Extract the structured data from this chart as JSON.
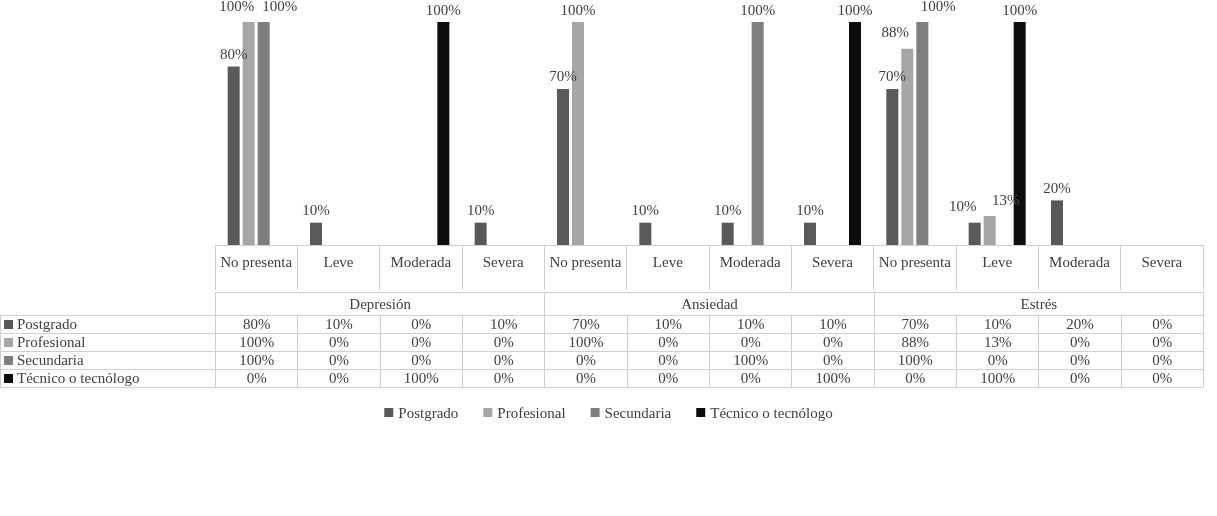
{
  "chart_data": {
    "type": "bar",
    "categories": [
      "No presenta",
      "Leve",
      "Moderada",
      "Severa",
      "No presenta",
      "Leve",
      "Moderada",
      "Severa",
      "No presenta",
      "Leve",
      "Moderada",
      "Severa"
    ],
    "annotations": [
      "Depresión",
      "Ansiedad",
      "Estrés"
    ],
    "series": [
      {
        "name": "Postgrado",
        "color": "#595959",
        "values": [
          80,
          10,
          0,
          10,
          70,
          10,
          10,
          10,
          70,
          10,
          20,
          0
        ],
        "value_labels": [
          "80%",
          "10%",
          "0%",
          "10%",
          "70%",
          "10%",
          "10%",
          "10%",
          "70%",
          "10%",
          "20%",
          "0%"
        ]
      },
      {
        "name": "Profesional",
        "color": "#a6a6a6",
        "values": [
          100,
          0,
          0,
          0,
          100,
          0,
          0,
          0,
          88,
          13,
          0,
          0
        ],
        "value_labels": [
          "100%",
          "0%",
          "0%",
          "0%",
          "100%",
          "0%",
          "0%",
          "0%",
          "88%",
          "13%",
          "0%",
          "0%"
        ]
      },
      {
        "name": "Secundaria",
        "color": "#7f7f7f",
        "values": [
          100,
          0,
          0,
          0,
          0,
          0,
          100,
          0,
          100,
          0,
          0,
          0
        ],
        "value_labels": [
          "100%",
          "0%",
          "0%",
          "0%",
          "0%",
          "0%",
          "100%",
          "0%",
          "100%",
          "0%",
          "0%",
          "0%"
        ]
      },
      {
        "name": "Técnico o tecnólogo",
        "color": "#0d0d0d",
        "values": [
          0,
          0,
          100,
          0,
          0,
          0,
          0,
          100,
          0,
          100,
          0,
          0
        ],
        "value_labels": [
          "0%",
          "0%",
          "100%",
          "0%",
          "0%",
          "0%",
          "0%",
          "100%",
          "0%",
          "100%",
          "0%",
          "0%"
        ]
      }
    ],
    "legend": "bottom",
    "grid": false
  }
}
